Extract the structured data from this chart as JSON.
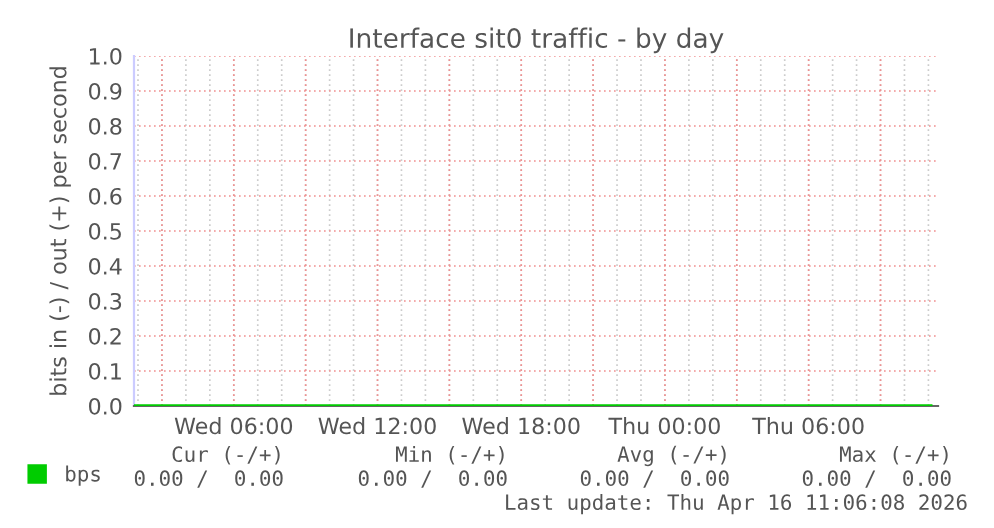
{
  "chart_data": {
    "type": "line",
    "title": "Interface sit0 traffic - by day",
    "ylabel": "bits in (-) / out (+) per second",
    "x": [
      "2026-04-15T01:50",
      "2026-04-15T06:00",
      "2026-04-15T12:00",
      "2026-04-15T18:00",
      "2026-04-16T00:00",
      "2026-04-16T06:00",
      "2026-04-16T11:06"
    ],
    "series": [
      {
        "name": "bps",
        "color": "#00cc00",
        "values": [
          0,
          0,
          0,
          0,
          0,
          0,
          0
        ]
      }
    ],
    "xlim": [
      "2026-04-15T01:50",
      "2026-04-16T11:24"
    ],
    "xticks": [
      {
        "value": "2026-04-15T03:00",
        "label": null
      },
      {
        "value": "2026-04-15T06:00",
        "label": "Wed 06:00"
      },
      {
        "value": "2026-04-15T09:00",
        "label": null
      },
      {
        "value": "2026-04-15T12:00",
        "label": "Wed 12:00"
      },
      {
        "value": "2026-04-15T15:00",
        "label": null
      },
      {
        "value": "2026-04-15T18:00",
        "label": "Wed 18:00"
      },
      {
        "value": "2026-04-15T21:00",
        "label": null
      },
      {
        "value": "2026-04-16T00:00",
        "label": "Thu 00:00"
      },
      {
        "value": "2026-04-16T03:00",
        "label": null
      },
      {
        "value": "2026-04-16T06:00",
        "label": "Thu 06:00"
      },
      {
        "value": "2026-04-16T09:00",
        "label": null
      }
    ],
    "ylim": [
      0,
      1
    ],
    "yticks": [
      {
        "value": 0,
        "label": "0.0"
      },
      {
        "value": 0.1,
        "label": "0.1"
      },
      {
        "value": 0.2,
        "label": "0.2"
      },
      {
        "value": 0.3,
        "label": "0.3"
      },
      {
        "value": 0.4,
        "label": "0.4"
      },
      {
        "value": 0.5,
        "label": "0.5"
      },
      {
        "value": 0.6,
        "label": "0.6"
      },
      {
        "value": 0.7,
        "label": "0.7"
      },
      {
        "value": 0.8,
        "label": "0.8"
      },
      {
        "value": 0.9,
        "label": "0.9"
      },
      {
        "value": 1,
        "label": "1.0"
      }
    ],
    "grid": true,
    "legend": "bottom left",
    "marker": "none",
    "line_style": "solid",
    "annotations": [
      "Cur (-/+)",
      "Min (-/+)",
      "Avg (-/+)",
      "Max (-/+)",
      "0.00 /  0.00",
      "0.00 /  0.00",
      "0.00 /  0.00",
      "0.00 /  0.00",
      "Last update: Thu Apr 16 11:06:08 2026"
    ]
  }
}
